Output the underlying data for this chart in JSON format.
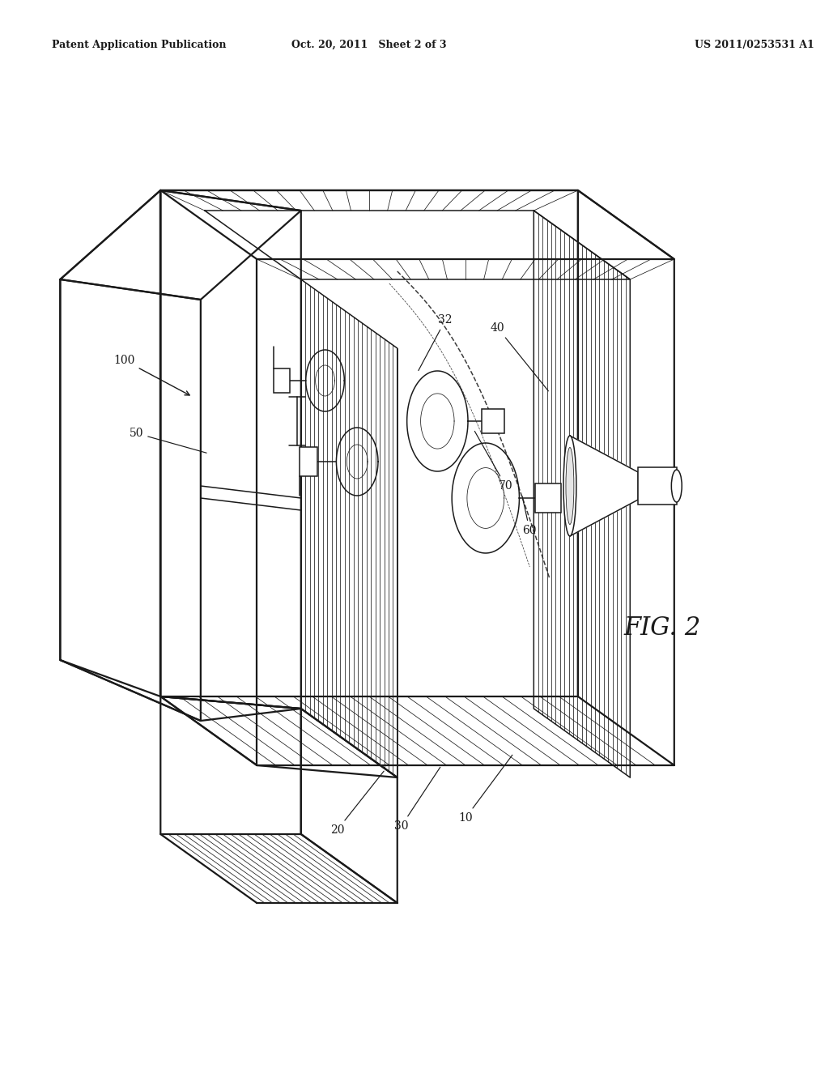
{
  "background_color": "#ffffff",
  "line_color": "#1a1a1a",
  "header_left": "Patent Application Publication",
  "header_center": "Oct. 20, 2011   Sheet 2 of 3",
  "header_right": "US 2011/0253531 A1",
  "fig_label": "FIG. 2",
  "header_fontsize": 9,
  "fig_fontsize": 22,
  "label_fontsize": 10
}
